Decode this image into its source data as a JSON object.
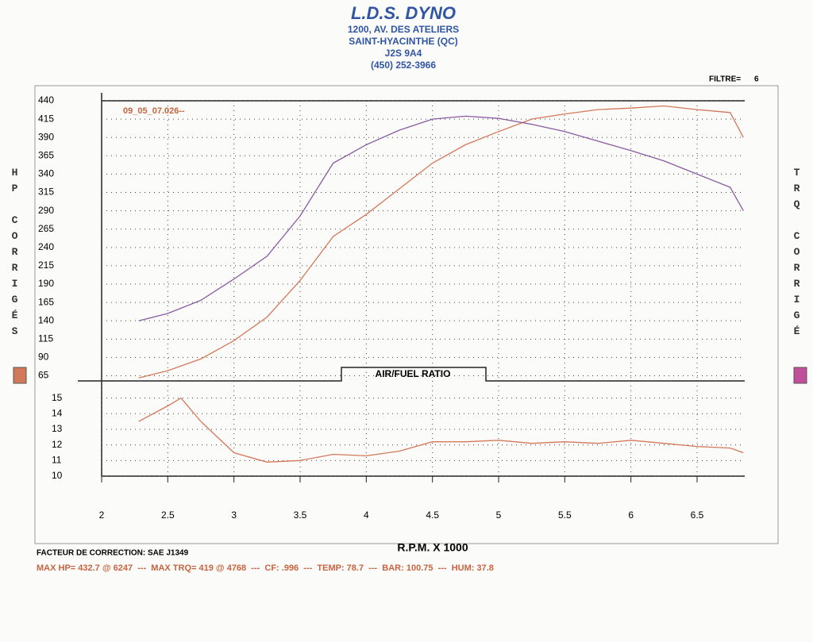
{
  "header": {
    "title": "L.D.S. DYNO",
    "lines": [
      "1200, AV. DES ATELIERS",
      "SAINT-HYACINTHE (QC)",
      "J2S 9A4",
      "(450) 252-3966"
    ],
    "filter_label": "FILTRE=",
    "filter_value": "6"
  },
  "chart_data": [
    {
      "type": "line",
      "ylabel": "HP CORRIGÉS",
      "y2label": "TRQ CORRIGÉ",
      "annotation": "09_05_07.026--",
      "x": [
        2.28,
        2.5,
        2.75,
        3,
        3.25,
        3.5,
        3.75,
        4,
        4.25,
        4.5,
        4.75,
        5,
        5.25,
        5.5,
        5.75,
        6,
        6.25,
        6.5,
        6.75,
        6.85
      ],
      "series": [
        {
          "color": "#d4785a",
          "values": [
            62,
            72,
            88,
            113,
            145,
            195,
            255,
            285,
            320,
            355,
            380,
            398,
            415,
            422,
            428,
            430,
            433,
            428,
            424,
            390
          ]
        },
        {
          "color": "#8a5aa0",
          "values": [
            140,
            150,
            168,
            197,
            228,
            283,
            355,
            380,
            400,
            415,
            419,
            416,
            408,
            398,
            385,
            372,
            358,
            340,
            322,
            290
          ]
        }
      ],
      "xlim": [
        2,
        6.86
      ],
      "xticks": [
        2.5,
        3,
        3.5,
        4,
        4.5,
        5,
        5.5,
        6,
        6.5
      ],
      "ylim": [
        58,
        440
      ],
      "yticks": [
        65,
        90,
        115,
        140,
        165,
        190,
        215,
        240,
        265,
        290,
        315,
        340,
        365,
        390,
        415,
        440
      ],
      "grid": true,
      "legend_colors": [
        "#d4785a",
        "#c0509a"
      ]
    },
    {
      "type": "line",
      "title": "AIR/FUEL RATIO",
      "xlabel": "R.P.M. X 1000",
      "x": [
        2.28,
        2.5,
        2.6,
        2.75,
        3,
        3.25,
        3.5,
        3.75,
        4,
        4.25,
        4.5,
        4.75,
        5,
        5.25,
        5.5,
        5.75,
        6,
        6.25,
        6.5,
        6.75,
        6.85
      ],
      "series": [
        {
          "color": "#d4785a",
          "values": [
            13.5,
            14.5,
            15,
            13.5,
            11.5,
            10.9,
            11.0,
            11.4,
            11.3,
            11.6,
            12.2,
            12.2,
            12.3,
            12.1,
            12.2,
            12.1,
            12.3,
            12.1,
            11.9,
            11.8,
            11.5
          ]
        }
      ],
      "xlim": [
        2,
        6.86
      ],
      "xticks": [
        2,
        2.5,
        3,
        3.5,
        4,
        4.5,
        5,
        5.5,
        6,
        6.5
      ],
      "ylim": [
        10,
        16.1
      ],
      "yticks": [
        10,
        11,
        12,
        13,
        14,
        15
      ],
      "grid": true
    }
  ],
  "footer": {
    "correction": "FACTEUR DE CORRECTION: SAE J1349",
    "summary": "MAX HP= 432.7 @ 6247  ---  MAX TRQ= 419 @ 4768  ---  CF: .996  ---  TEMP: 78.7  ---  BAR: 100.75  ---  HUM: 37.8"
  }
}
